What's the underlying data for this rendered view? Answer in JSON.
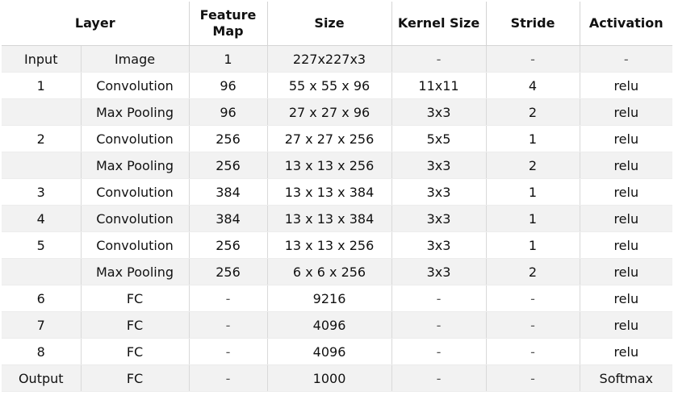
{
  "table": {
    "headers": [
      [
        "Layer"
      ],
      [
        "Feature",
        "Map"
      ],
      [
        "Size"
      ],
      [
        "Kernel Size"
      ],
      [
        "Stride"
      ],
      [
        "Activation"
      ]
    ],
    "rows": [
      [
        "Input",
        "Image",
        "1",
        "227x227x3",
        "-",
        "-",
        "-"
      ],
      [
        "1",
        "Convolution",
        "96",
        "55 x 55 x 96",
        "11x11",
        "4",
        "relu"
      ],
      [
        "",
        "Max Pooling",
        "96",
        "27 x 27 x 96",
        "3x3",
        "2",
        "relu"
      ],
      [
        "2",
        "Convolution",
        "256",
        "27 x 27 x 256",
        "5x5",
        "1",
        "relu"
      ],
      [
        "",
        "Max Pooling",
        "256",
        "13 x 13 x 256",
        "3x3",
        "2",
        "relu"
      ],
      [
        "3",
        "Convolution",
        "384",
        "13 x 13 x 384",
        "3x3",
        "1",
        "relu"
      ],
      [
        "4",
        "Convolution",
        "384",
        "13 x 13 x 384",
        "3x3",
        "1",
        "relu"
      ],
      [
        "5",
        "Convolution",
        "256",
        "13 x 13 x 256",
        "3x3",
        "1",
        "relu"
      ],
      [
        "",
        "Max Pooling",
        "256",
        "6 x 6 x 256",
        "3x3",
        "2",
        "relu"
      ],
      [
        "6",
        "FC",
        "-",
        "9216",
        "-",
        "-",
        "relu"
      ],
      [
        "7",
        "FC",
        "-",
        "4096",
        "-",
        "-",
        "relu"
      ],
      [
        "8",
        "FC",
        "-",
        "4096",
        "-",
        "-",
        "relu"
      ],
      [
        "Output",
        "FC",
        "-",
        "1000",
        "-",
        "-",
        "Softmax"
      ]
    ]
  }
}
